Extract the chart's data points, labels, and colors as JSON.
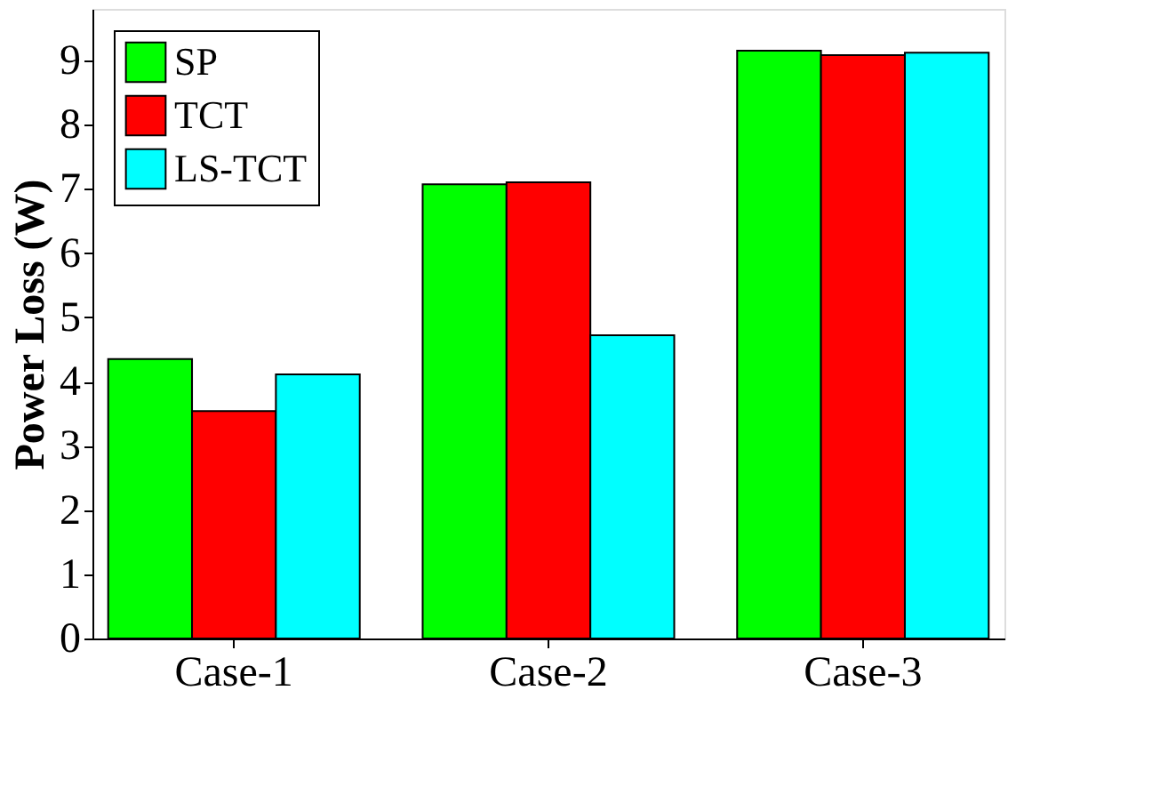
{
  "chart_data": {
    "type": "bar",
    "ylabel": "Power Loss (W)",
    "categories": [
      "Case-1",
      "Case-2",
      "Case-3"
    ],
    "series": [
      {
        "name": "SP",
        "color": "#00ff00",
        "values": [
          4.35,
          7.07,
          9.15
        ]
      },
      {
        "name": "TCT",
        "color": "#ff0000",
        "values": [
          3.54,
          7.1,
          9.08
        ]
      },
      {
        "name": "LS-TCT",
        "color": "#00ffff",
        "values": [
          4.11,
          4.72,
          9.12
        ]
      }
    ],
    "ylim": [
      0,
      9.8
    ],
    "yticks": [
      0,
      1,
      2,
      3,
      4,
      5,
      6,
      7,
      8,
      9
    ],
    "grid": false,
    "legend": "top left"
  }
}
